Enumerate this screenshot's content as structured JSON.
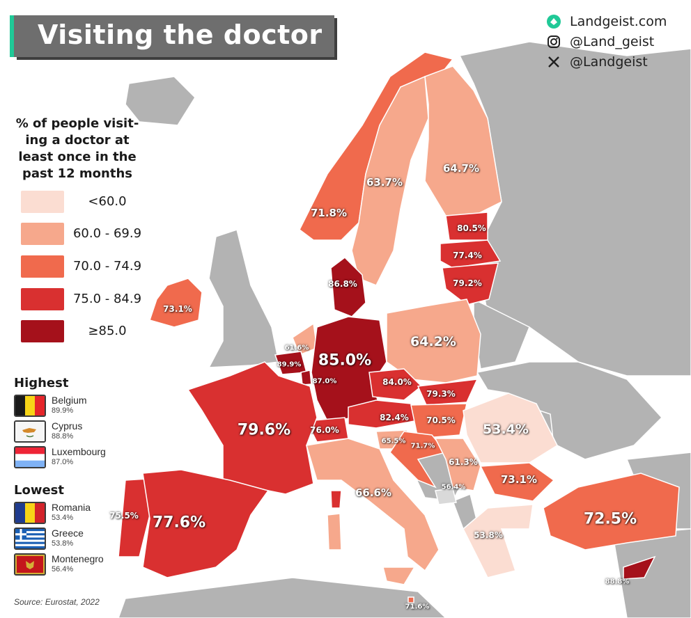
{
  "title": "Visiting the doctor",
  "social": [
    {
      "icon": "landgeist-logo-icon",
      "text": "Landgeist.com"
    },
    {
      "icon": "instagram-icon",
      "text": "@Land_geist"
    },
    {
      "icon": "x-icon",
      "text": "@Landgeist"
    }
  ],
  "legend": {
    "title_lines": [
      "% of people visit-",
      "ing a doctor at",
      "least once in the",
      "past 12 months"
    ],
    "items": [
      {
        "label": "<60.0",
        "color": "#fbddd2"
      },
      {
        "label": "60.0 - 69.9",
        "color": "#f6a88c"
      },
      {
        "label": "70.0 - 74.9",
        "color": "#f06a4d"
      },
      {
        "label": "75.0 - 84.9",
        "color": "#d93030"
      },
      {
        "label": "≥85.0",
        "color": "#a5111b"
      }
    ]
  },
  "highest": {
    "heading": "Highest",
    "items": [
      {
        "name": "Belgium",
        "value": "89.9%",
        "flag": "belgium"
      },
      {
        "name": "Cyprus",
        "value": "88.8%",
        "flag": "cyprus"
      },
      {
        "name": "Luxembourg",
        "value": "87.0%",
        "flag": "luxembourg"
      }
    ]
  },
  "lowest": {
    "heading": "Lowest",
    "items": [
      {
        "name": "Romania",
        "value": "53.4%",
        "flag": "romania"
      },
      {
        "name": "Greece",
        "value": "53.8%",
        "flag": "greece"
      },
      {
        "name": "Montenegro",
        "value": "56.4%",
        "flag": "montenegro"
      }
    ]
  },
  "source": "Source: Eurostat, 2022",
  "colors": {
    "no_data": "#b3b3b3",
    "title_bg": "#6e6e6e",
    "title_accent": "#20c997"
  },
  "country_values": [
    {
      "country": "Norway",
      "label": "71.8%",
      "value": 71.8
    },
    {
      "country": "Sweden",
      "label": "63.7%",
      "value": 63.7
    },
    {
      "country": "Finland",
      "label": "64.7%",
      "value": 64.7
    },
    {
      "country": "Estonia",
      "label": "80.5%",
      "value": 80.5
    },
    {
      "country": "Latvia",
      "label": "77.4%",
      "value": 77.4
    },
    {
      "country": "Lithuania",
      "label": "79.2%",
      "value": 79.2
    },
    {
      "country": "Denmark",
      "label": "86.8%",
      "value": 86.8
    },
    {
      "country": "Ireland",
      "label": "73.1%",
      "value": 73.1
    },
    {
      "country": "Netherlands",
      "label": "61.6%",
      "value": 61.6
    },
    {
      "country": "Belgium",
      "label": "89.9%",
      "value": 89.9
    },
    {
      "country": "Luxembourg",
      "label": "87.0%",
      "value": 87.0
    },
    {
      "country": "Germany",
      "label": "85.0%",
      "value": 85.0
    },
    {
      "country": "Poland",
      "label": "64.2%",
      "value": 64.2
    },
    {
      "country": "Czechia",
      "label": "84.0%",
      "value": 84.0
    },
    {
      "country": "Slovakia",
      "label": "79.3%",
      "value": 79.3
    },
    {
      "country": "Austria",
      "label": "82.4%",
      "value": 82.4
    },
    {
      "country": "Hungary",
      "label": "70.5%",
      "value": 70.5
    },
    {
      "country": "Switzerland",
      "label": "76.0%",
      "value": 76.0
    },
    {
      "country": "France",
      "label": "79.6%",
      "value": 79.6
    },
    {
      "country": "Slovenia",
      "label": "65.5%",
      "value": 65.5
    },
    {
      "country": "Croatia",
      "label": "71.7%",
      "value": 71.7
    },
    {
      "country": "Serbia",
      "label": "61.3%",
      "value": 61.3
    },
    {
      "country": "Romania",
      "label": "53.4%",
      "value": 53.4
    },
    {
      "country": "Montenegro",
      "label": "56.4%",
      "value": 56.4
    },
    {
      "country": "Bulgaria",
      "label": "73.1%",
      "value": 73.1
    },
    {
      "country": "Italy",
      "label": "66.6%",
      "value": 66.6
    },
    {
      "country": "Portugal",
      "label": "75.5%",
      "value": 75.5
    },
    {
      "country": "Spain",
      "label": "77.6%",
      "value": 77.6
    },
    {
      "country": "Greece",
      "label": "53.8%",
      "value": 53.8
    },
    {
      "country": "Turkey",
      "label": "72.5%",
      "value": 72.5
    },
    {
      "country": "Cyprus",
      "label": "88.8%",
      "value": 88.8
    },
    {
      "country": "Malta",
      "label": "71.6%",
      "value": 71.6
    }
  ]
}
